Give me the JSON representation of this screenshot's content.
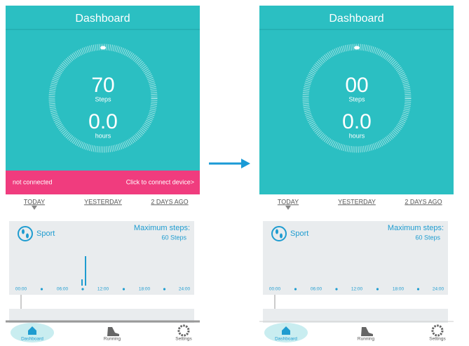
{
  "screens": [
    {
      "title": "Dashboard",
      "steps_value": "70",
      "steps_label": "Steps",
      "hours_value": "0.0",
      "hours_label": "hours",
      "banner": {
        "status": "not connected",
        "action": "Click to connect device>"
      },
      "tabs": [
        "TODAY",
        "YESTERDAY",
        "2 DAYS AGO"
      ],
      "card": {
        "title": "Sport",
        "max_label": "Maximum steps:",
        "max_value": "60 Steps",
        "times": [
          "00:00",
          "06:00",
          "12:00",
          "18:00",
          "24:00"
        ]
      },
      "nav": [
        "Dashboard",
        "Running",
        "Settings"
      ]
    },
    {
      "title": "Dashboard",
      "steps_value": "00",
      "steps_label": "Steps",
      "hours_value": "0.0",
      "hours_label": "hours",
      "tabs": [
        "TODAY",
        "YESTERDAY",
        "2 DAYS AGO"
      ],
      "card": {
        "title": "Sport",
        "max_label": "Maximum steps:",
        "max_value": "60 Steps",
        "times": [
          "00:00",
          "06:00",
          "12:00",
          "18:00",
          "24:00"
        ]
      },
      "nav": [
        "Dashboard",
        "Running",
        "Settings"
      ]
    }
  ]
}
